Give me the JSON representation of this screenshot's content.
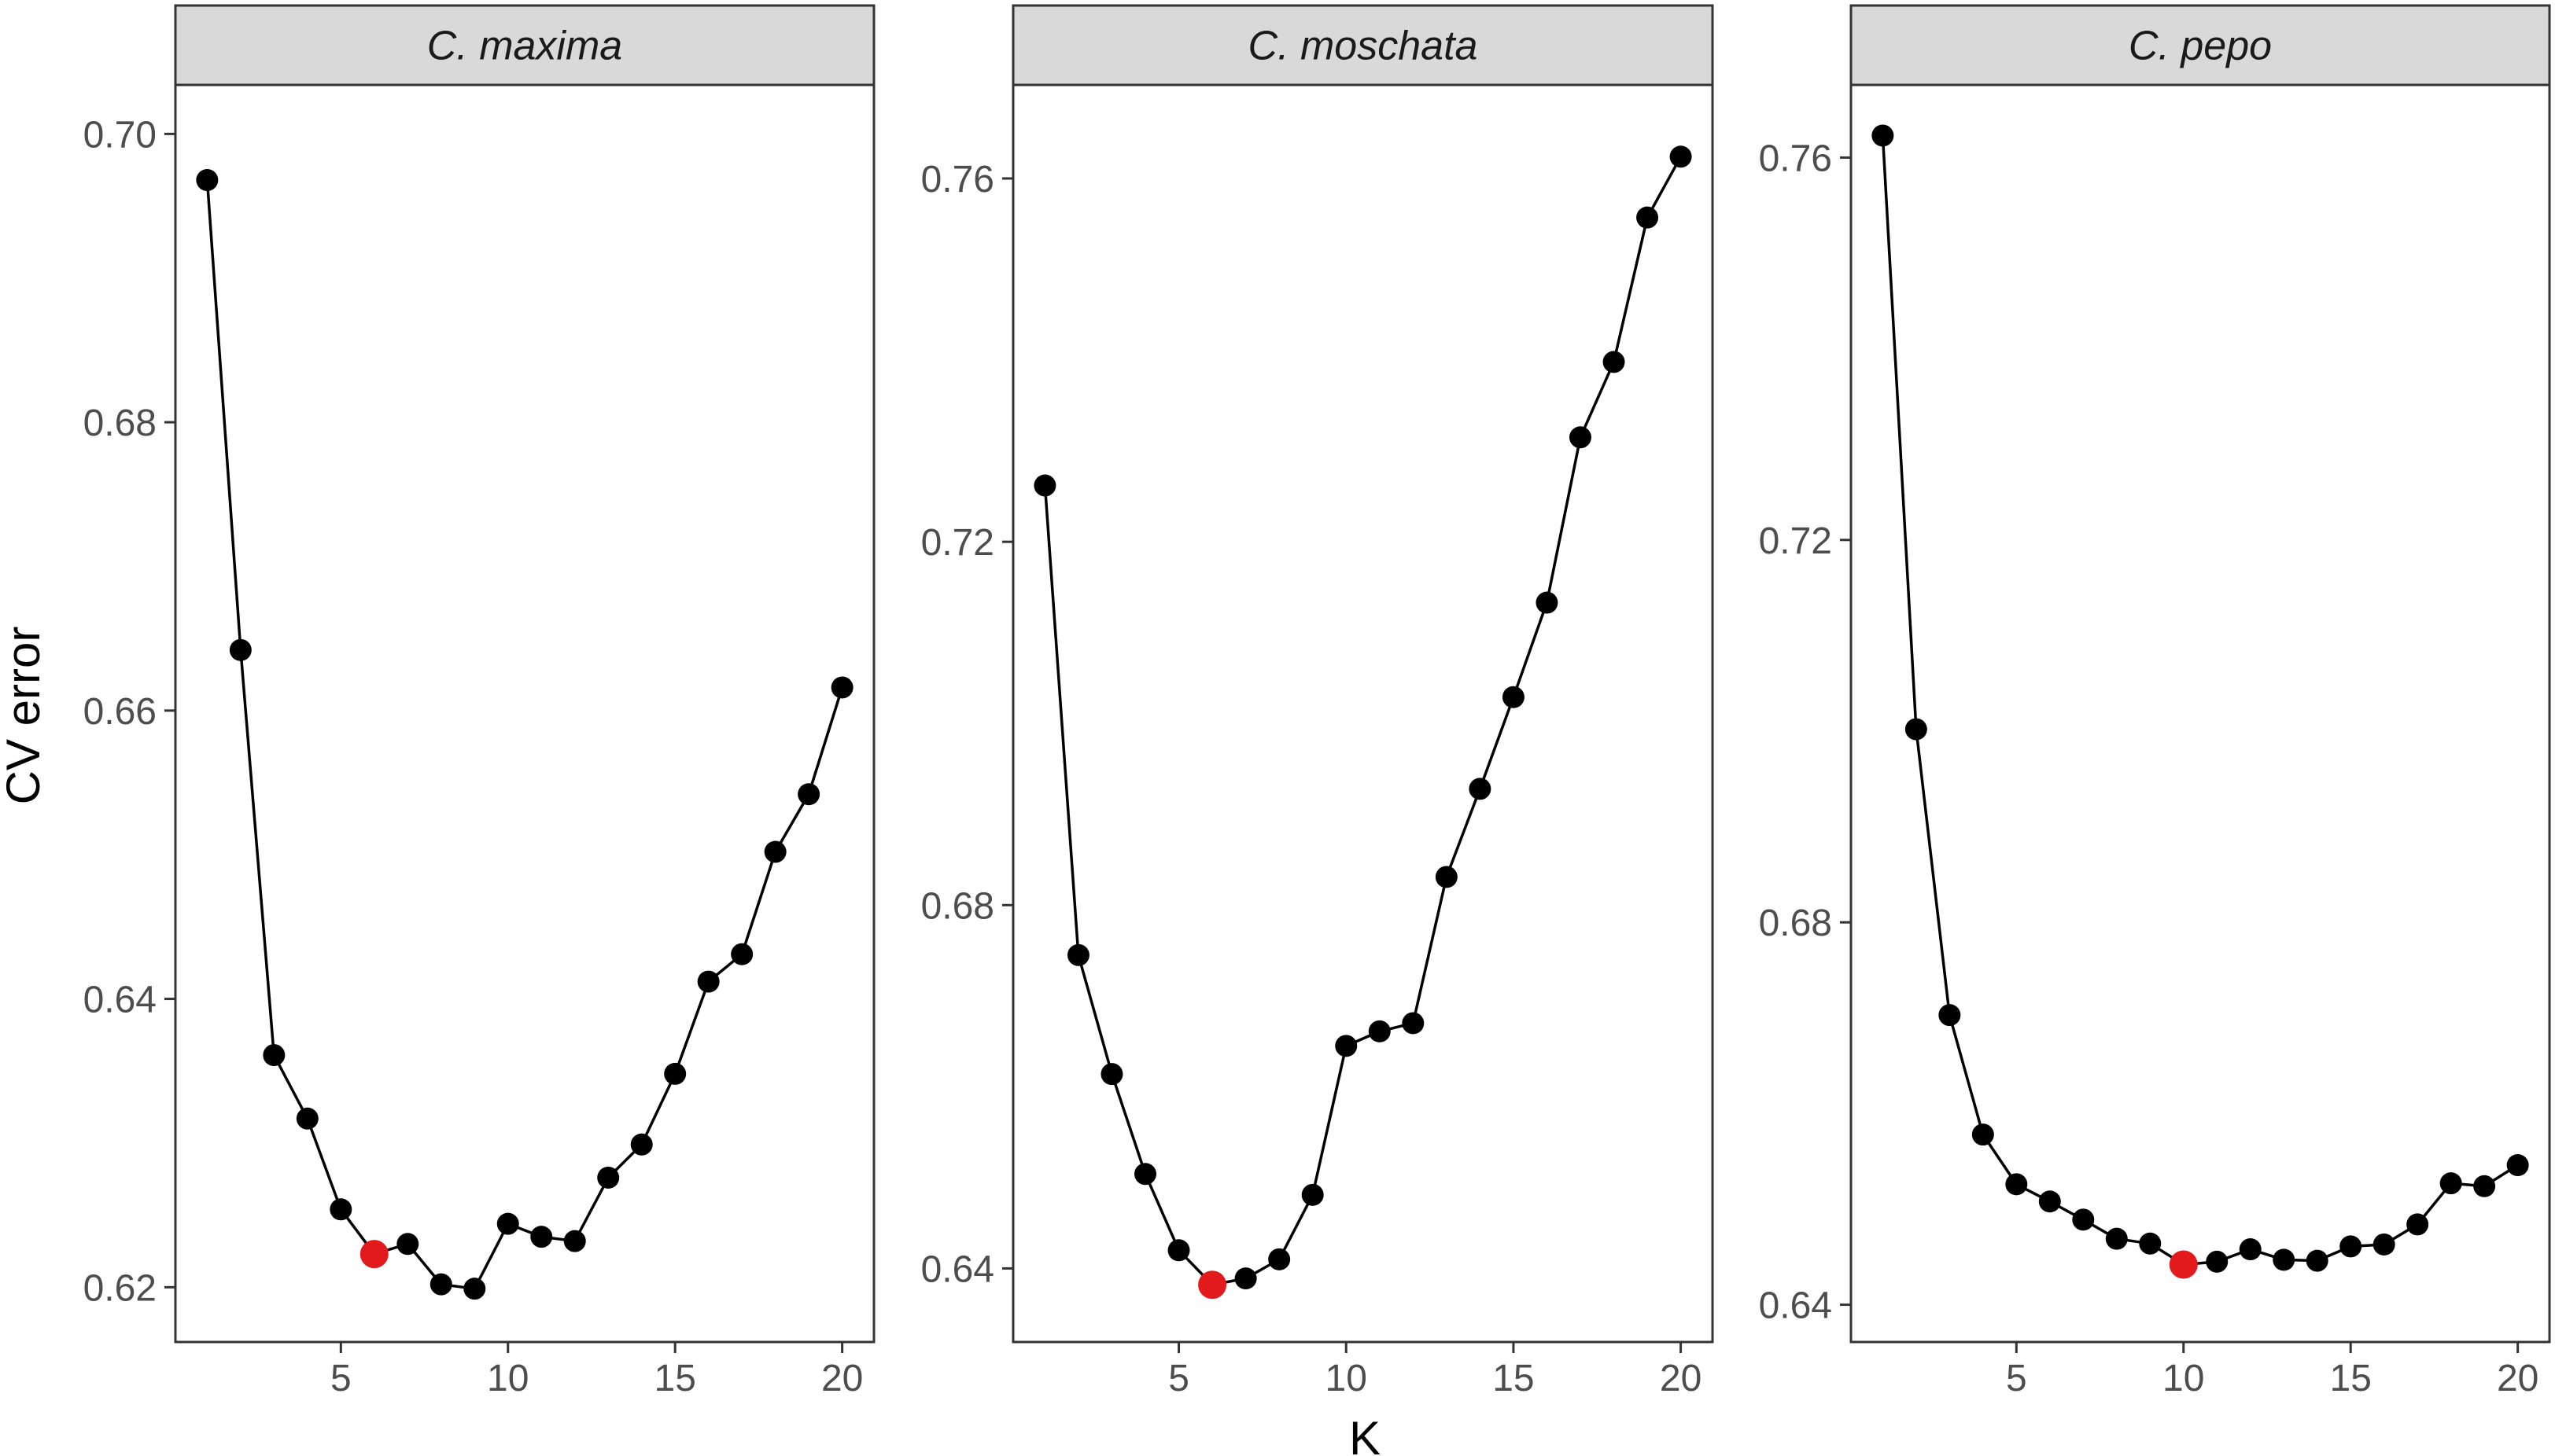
{
  "chart_data": {
    "type": "line",
    "xlabel": "K",
    "ylabel": "CV error",
    "highlight_color": "#e31a1c",
    "point_color": "#000000",
    "strip_fill": "#d9d9d9",
    "panels": [
      {
        "title": "C. maxima",
        "xlim": [
          0.05,
          20.95
        ],
        "ylim": [
          0.6162,
          0.7034
        ],
        "xticks": [
          5,
          10,
          15,
          20
        ],
        "yticks": [
          0.62,
          0.64,
          0.66,
          0.68,
          0.7
        ],
        "ytick_labels": [
          "0.62",
          "0.64",
          "0.66",
          "0.68",
          "0.70"
        ],
        "x": [
          1,
          2,
          3,
          4,
          5,
          6,
          7,
          8,
          9,
          10,
          11,
          12,
          13,
          14,
          15,
          16,
          17,
          18,
          19,
          20
        ],
        "y": [
          0.6968,
          0.6642,
          0.6361,
          0.6317,
          0.6254,
          0.6223,
          0.623,
          0.6202,
          0.6199,
          0.6244,
          0.6235,
          0.6232,
          0.6276,
          0.6299,
          0.6348,
          0.6412,
          0.6431,
          0.6502,
          0.6542,
          0.6616
        ],
        "highlight_x": 6
      },
      {
        "title": "C. moschata",
        "xlim": [
          0.05,
          20.95
        ],
        "ylim": [
          0.6319,
          0.7703
        ],
        "xticks": [
          5,
          10,
          15,
          20
        ],
        "yticks": [
          0.64,
          0.68,
          0.72,
          0.76
        ],
        "ytick_labels": [
          "0.64",
          "0.68",
          "0.72",
          "0.76"
        ],
        "x": [
          1,
          2,
          3,
          4,
          5,
          6,
          7,
          8,
          9,
          10,
          11,
          12,
          13,
          14,
          15,
          16,
          17,
          18,
          19,
          20
        ],
        "y": [
          0.7262,
          0.6745,
          0.6614,
          0.6504,
          0.642,
          0.6382,
          0.6389,
          0.641,
          0.6481,
          0.6645,
          0.6661,
          0.667,
          0.6831,
          0.6928,
          0.7029,
          0.7133,
          0.7315,
          0.7398,
          0.7557,
          0.7624
        ],
        "highlight_x": 6
      },
      {
        "title": "C. pepo",
        "xlim": [
          0.05,
          20.95
        ],
        "ylim": [
          0.6361,
          0.7676
        ],
        "xticks": [
          5,
          10,
          15,
          20
        ],
        "yticks": [
          0.64,
          0.68,
          0.72,
          0.76
        ],
        "ytick_labels": [
          "0.64",
          "0.68",
          "0.72",
          "0.76"
        ],
        "x": [
          1,
          2,
          3,
          4,
          5,
          6,
          7,
          8,
          9,
          10,
          11,
          12,
          13,
          14,
          15,
          16,
          17,
          18,
          19,
          20
        ],
        "y": [
          0.7623,
          0.7002,
          0.6703,
          0.6578,
          0.6526,
          0.6508,
          0.6489,
          0.6469,
          0.6464,
          0.6442,
          0.6445,
          0.6458,
          0.6447,
          0.6446,
          0.6461,
          0.6463,
          0.6484,
          0.6527,
          0.6524,
          0.6546
        ],
        "highlight_x": 10
      }
    ]
  }
}
